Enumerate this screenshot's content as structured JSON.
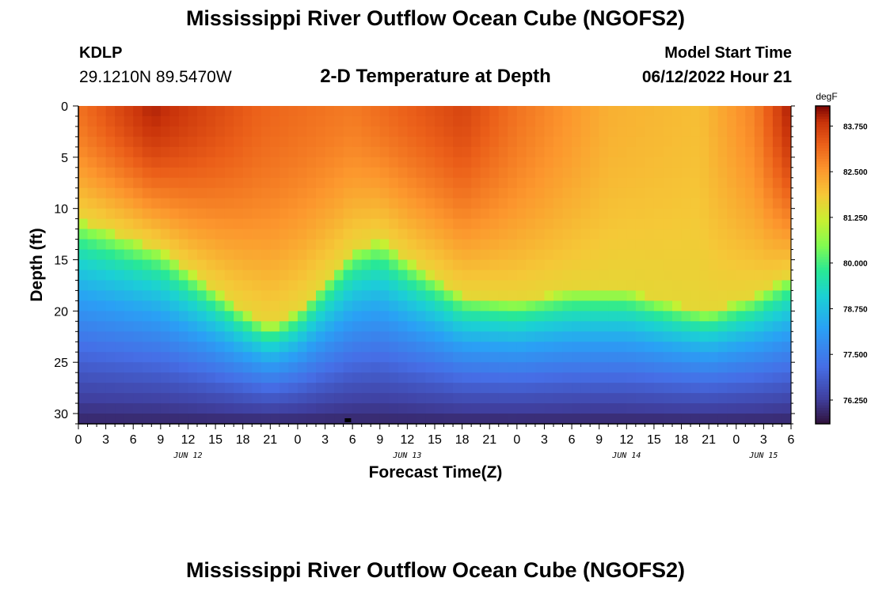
{
  "header": {
    "title": "Mississippi River Outflow Ocean Cube (NGOFS2)",
    "station_id": "KDLP",
    "coordinates": "29.1210N  89.5470W",
    "subtitle": "2-D Temperature at Depth",
    "model_start_label": "Model Start Time",
    "model_start_value": "06/12/2022 Hour 21"
  },
  "footer": {
    "title": "Mississippi River Outflow Ocean Cube (NGOFS2)"
  },
  "chart_data": {
    "type": "heatmap",
    "title": "2-D Temperature at Depth",
    "xlabel": "Forecast Time(Z)",
    "ylabel": "Depth (ft)",
    "x_range_hours": [
      0,
      78
    ],
    "ylim": [
      0,
      31
    ],
    "y_ticks": [
      0,
      5,
      10,
      15,
      20,
      25,
      30
    ],
    "x_tick_labels": [
      "0",
      "3",
      "6",
      "9",
      "12",
      "15",
      "18",
      "21",
      "0",
      "3",
      "6",
      "9",
      "12",
      "15",
      "18",
      "21",
      "0",
      "3",
      "6",
      "9",
      "12",
      "15",
      "18",
      "21",
      "0",
      "3",
      "6"
    ],
    "date_labels": [
      {
        "label": "JUN 12",
        "hour": 12
      },
      {
        "label": "JUN 13",
        "hour": 36
      },
      {
        "label": "JUN 14",
        "hour": 60
      },
      {
        "label": "JUN 15",
        "hour": 75
      }
    ],
    "colorbar": {
      "unit": "degF",
      "min": 75.6,
      "max": 84.3,
      "tick_labels": [
        "83.750",
        "82.500",
        "81.250",
        "80.000",
        "78.750",
        "77.500",
        "76.250"
      ],
      "tick_values": [
        83.75,
        82.5,
        81.25,
        80.0,
        78.75,
        77.5,
        76.25
      ]
    },
    "field": {
      "thermocline_depth_ft": [
        {
          "hour": 0,
          "depth": 11
        },
        {
          "hour": 9,
          "depth": 14
        },
        {
          "hour": 18,
          "depth": 20
        },
        {
          "hour": 21,
          "depth": 21.5
        },
        {
          "hour": 24,
          "depth": 20
        },
        {
          "hour": 30,
          "depth": 14
        },
        {
          "hour": 33,
          "depth": 13
        },
        {
          "hour": 36,
          "depth": 15
        },
        {
          "hour": 42,
          "depth": 18.5
        },
        {
          "hour": 48,
          "depth": 19
        },
        {
          "hour": 54,
          "depth": 18
        },
        {
          "hour": 60,
          "depth": 18
        },
        {
          "hour": 66,
          "depth": 19.5
        },
        {
          "hour": 69,
          "depth": 20
        },
        {
          "hour": 74,
          "depth": 18.5
        },
        {
          "hour": 78,
          "depth": 16.5
        }
      ],
      "surface_temp_degF": [
        {
          "hour": 0,
          "temp": 83.0
        },
        {
          "hour": 8,
          "temp": 84.0
        },
        {
          "hour": 20,
          "temp": 83.2
        },
        {
          "hour": 30,
          "temp": 82.9
        },
        {
          "hour": 42,
          "temp": 83.6
        },
        {
          "hour": 48,
          "temp": 83.0
        },
        {
          "hour": 58,
          "temp": 82.2
        },
        {
          "hour": 68,
          "temp": 82.0
        },
        {
          "hour": 74,
          "temp": 82.8
        },
        {
          "hour": 78,
          "temp": 84.1
        }
      ],
      "bottom_temp_degF": 75.9
    }
  }
}
